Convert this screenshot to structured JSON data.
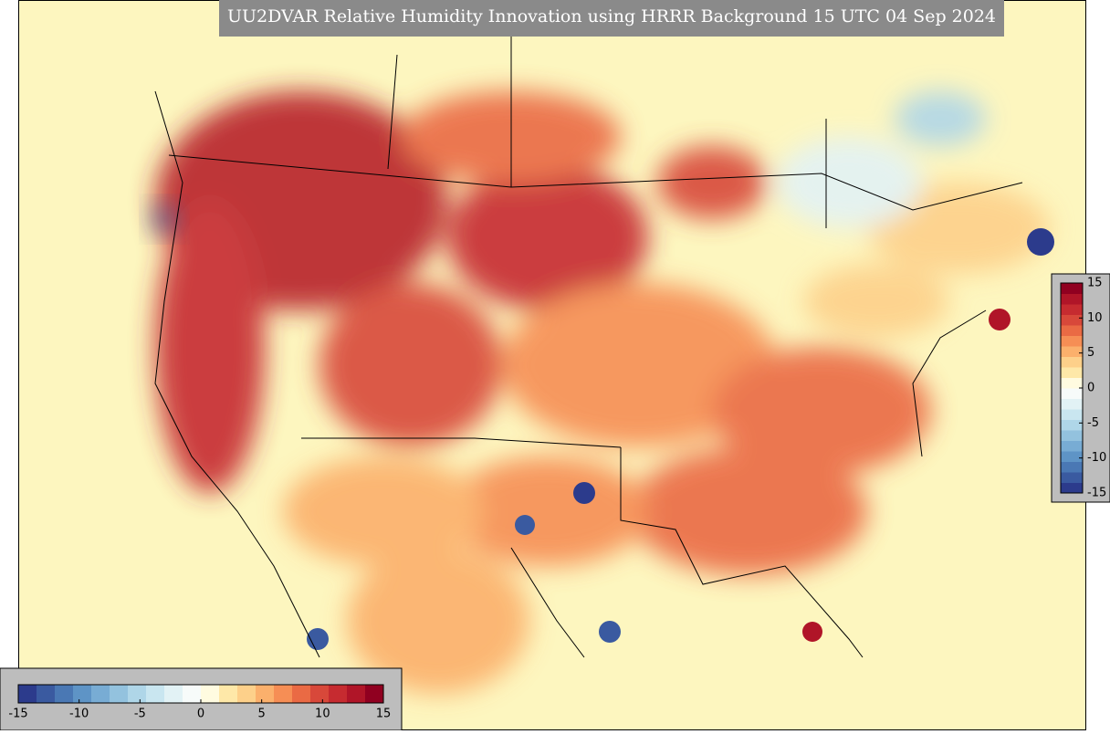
{
  "title": "UU2DVAR Relative Humidity Innovation using HRRR Background 15 UTC 04 Sep 2024",
  "colorbar": {
    "range": [
      -15,
      15
    ],
    "ticks": [
      -15,
      -10,
      -5,
      0,
      5,
      10,
      15
    ],
    "colors": [
      "#2c3b8c",
      "#3a5aa0",
      "#4a78b4",
      "#5e94c6",
      "#78acd4",
      "#93c2de",
      "#afd6e8",
      "#c9e6f0",
      "#e2f2f5",
      "#f7fbfa",
      "#fffbe0",
      "#fee8a8",
      "#fdd08a",
      "#fbb06c",
      "#f68e55",
      "#ea6a44",
      "#d8483a",
      "#c62b30",
      "#b01528",
      "#900020"
    ]
  }
}
